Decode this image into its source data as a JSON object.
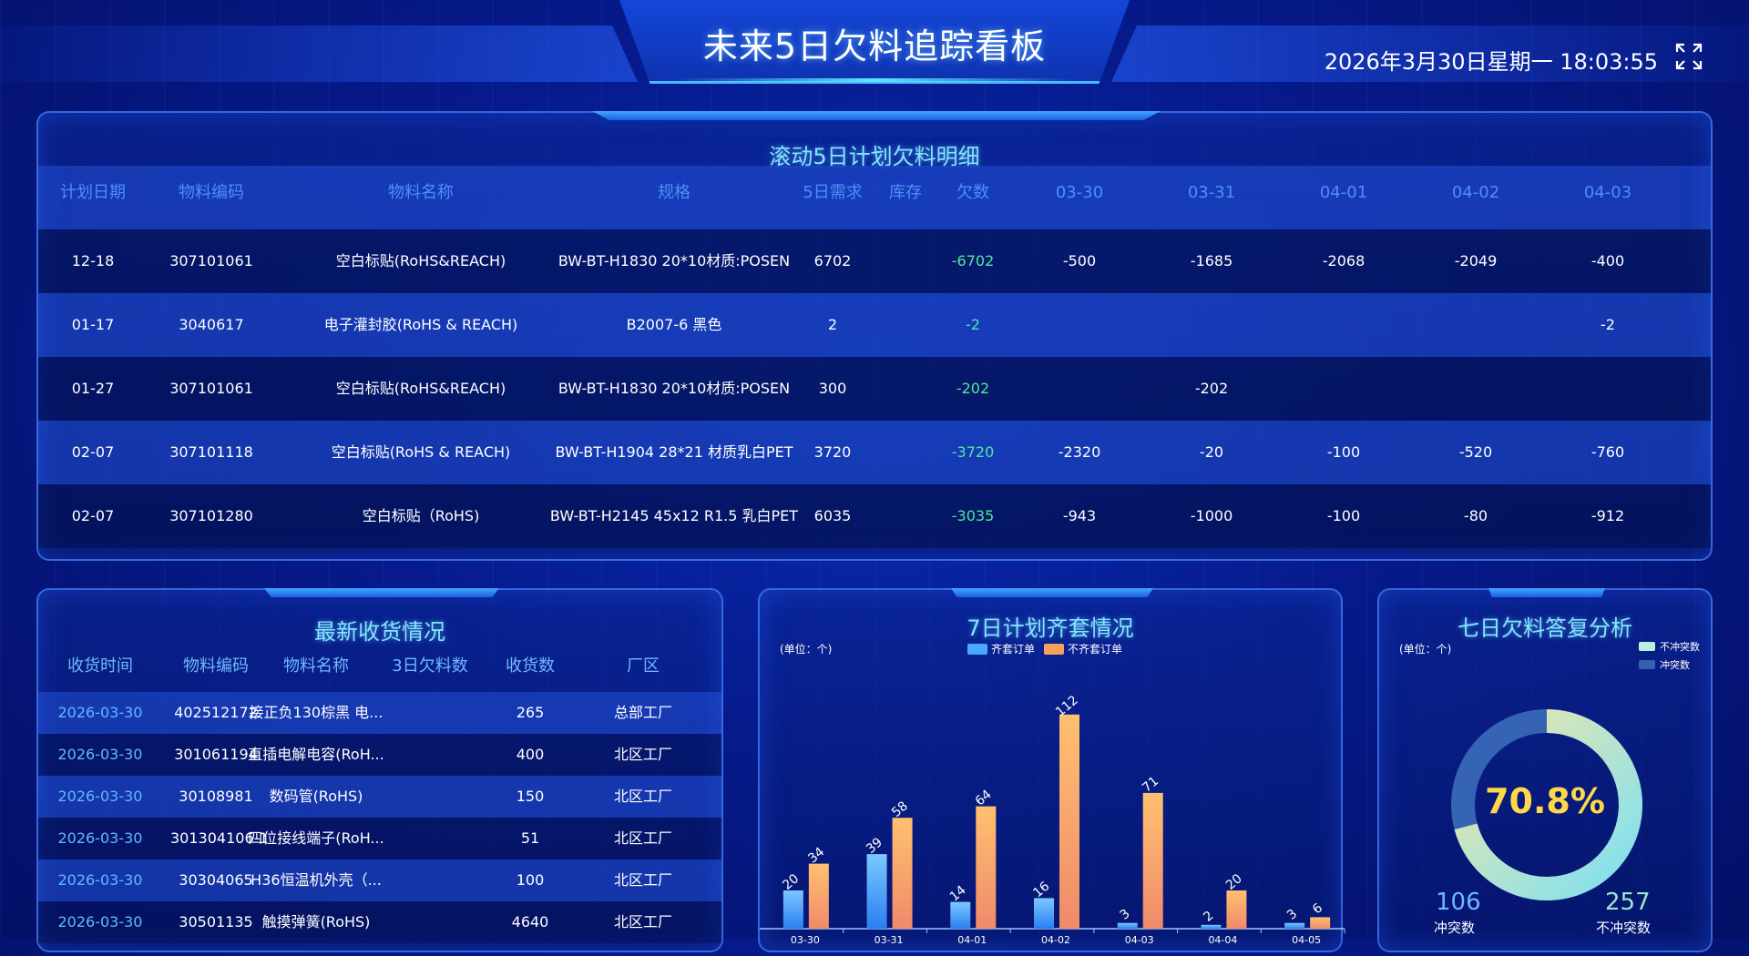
{
  "header": {
    "title": "未来5日欠料追踪看板",
    "datetime": "2026年3月30日星期一 18:03:55"
  },
  "main_table": {
    "title": "滚动5日计划欠料明细",
    "columns": [
      "计划日期",
      "物料编码",
      "物料名称",
      "规格",
      "5日需求",
      "库存",
      "欠数",
      "03-30",
      "03-31",
      "04-01",
      "04-02",
      "04-03"
    ],
    "rows": [
      [
        "12-18",
        "307101061",
        "空白标贴(RoHS&REACH)",
        "BW-BT-H1830 20*10材质:POSEN",
        "6702",
        "",
        "-6702",
        "-500",
        "-1685",
        "-2068",
        "-2049",
        "-400"
      ],
      [
        "01-17",
        "3040617",
        "电子灌封胶(RoHS & REACH)",
        "B2007-6 黑色",
        "2",
        "",
        "-2",
        "",
        "",
        "",
        "",
        "-2"
      ],
      [
        "01-27",
        "307101061",
        "空白标贴(RoHS&REACH)",
        "BW-BT-H1830 20*10材质:POSEN",
        "300",
        "",
        "-202",
        "",
        "-202",
        "",
        "",
        ""
      ],
      [
        "02-07",
        "307101118",
        "空白标贴(RoHS & REACH)",
        "BW-BT-H1904 28*21 材质乳白PET",
        "3720",
        "",
        "-3720",
        "-2320",
        "-20",
        "-100",
        "-520",
        "-760"
      ],
      [
        "02-07",
        "307101280",
        "空白标贴（RoHS)",
        "BW-BT-H2145 45x12 R1.5 乳白PET",
        "6035",
        "",
        "-3035",
        "-943",
        "-1000",
        "-100",
        "-80",
        "-912"
      ]
    ]
  },
  "receipts": {
    "title": "最新收货情况",
    "columns": [
      "收货时间",
      "物料编码",
      "物料名称",
      "3日欠料数",
      "收货数",
      "厂区"
    ],
    "rows": [
      [
        "2026-03-30",
        "402512172",
        "接正负130棕黑 电...",
        "",
        "265",
        "总部工厂"
      ],
      [
        "2026-03-30",
        "301061194",
        "直插电解电容(RoH...",
        "",
        "400",
        "北区工厂"
      ],
      [
        "2026-03-30",
        "30108981",
        "数码管(RoHS)",
        "",
        "150",
        "北区工厂"
      ],
      [
        "2026-03-30",
        "301304106-1",
        "四位接线端子(RoH...",
        "",
        "51",
        "北区工厂"
      ],
      [
        "2026-03-30",
        "30304065",
        "H36恒温机外壳（...",
        "",
        "100",
        "北区工厂"
      ],
      [
        "2026-03-30",
        "30501135",
        "触摸弹簧(RoHS)",
        "",
        "4640",
        "北区工厂"
      ]
    ]
  },
  "chart_data": {
    "type": "bar",
    "title": "7日计划齐套情况",
    "unit_label": "(单位：个)",
    "categories": [
      "03-30",
      "03-31",
      "04-01",
      "04-02",
      "04-03",
      "04-04",
      "04-05"
    ],
    "series": [
      {
        "name": "齐套订单",
        "values": [
          20,
          39,
          14,
          16,
          3,
          2,
          3
        ],
        "color": "#4aa8ff"
      },
      {
        "name": "不齐套订单",
        "values": [
          34,
          58,
          64,
          112,
          71,
          20,
          6
        ],
        "color": "#f7a25a"
      }
    ],
    "ylim": [
      0,
      120
    ],
    "grid": false,
    "legend": "top-center"
  },
  "donut": {
    "title": "七日欠料答复分析",
    "unit_label": "(单位：个)",
    "legend": [
      {
        "name": "不冲突数",
        "color": "#b8f0e0"
      },
      {
        "name": "冲突数",
        "color": "#3560b0"
      }
    ],
    "percent": "70.8%",
    "percent_value": 0.708,
    "conflict_count": "106",
    "conflict_label": "冲突数",
    "no_conflict_count": "257",
    "no_conflict_label": "不冲突数",
    "colors": {
      "conflict": "#3664b4",
      "no_conflict_start": "#7ee0f2",
      "no_conflict_end": "#f2e7a8",
      "percent_text": "#ffd84a"
    }
  }
}
